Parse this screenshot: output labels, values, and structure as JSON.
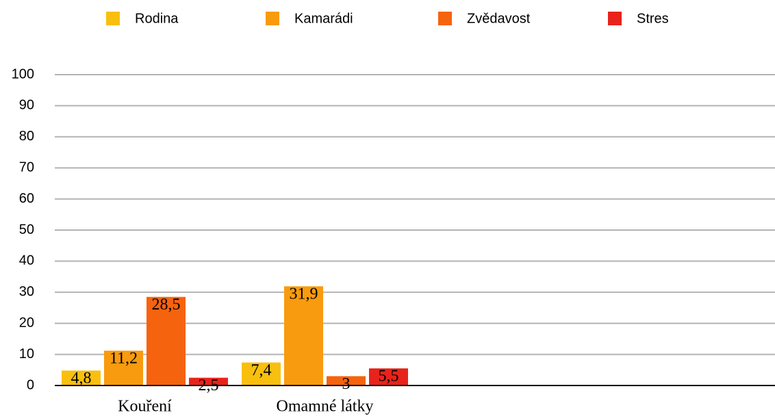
{
  "chart_data": {
    "type": "bar",
    "categories": [
      "Kouření",
      "Omamné látky",
      null,
      null
    ],
    "series": [
      {
        "name": "Rodina",
        "color": "#f9bf0f",
        "values": [
          4.8,
          7.4,
          null,
          null
        ],
        "value_labels": [
          "4,8",
          "7,4",
          null,
          null
        ]
      },
      {
        "name": "Kamarádi",
        "color": "#f89b0e",
        "values": [
          11.2,
          31.9,
          null,
          null
        ],
        "value_labels": [
          "11,2",
          "31,9",
          null,
          null
        ]
      },
      {
        "name": "Zvědavost",
        "color": "#f6630e",
        "values": [
          28.5,
          3,
          null,
          null
        ],
        "value_labels": [
          "28,5",
          "3",
          null,
          null
        ]
      },
      {
        "name": "Stres",
        "color": "#e8231b",
        "values": [
          2.5,
          5.5,
          null,
          null
        ],
        "value_labels": [
          "2,5",
          "5,5",
          null,
          null
        ]
      }
    ],
    "ylim": [
      0,
      100
    ],
    "yticks": [
      0,
      10,
      20,
      30,
      40,
      50,
      60,
      70,
      80,
      90,
      100
    ],
    "grid": true,
    "legend": "top"
  }
}
